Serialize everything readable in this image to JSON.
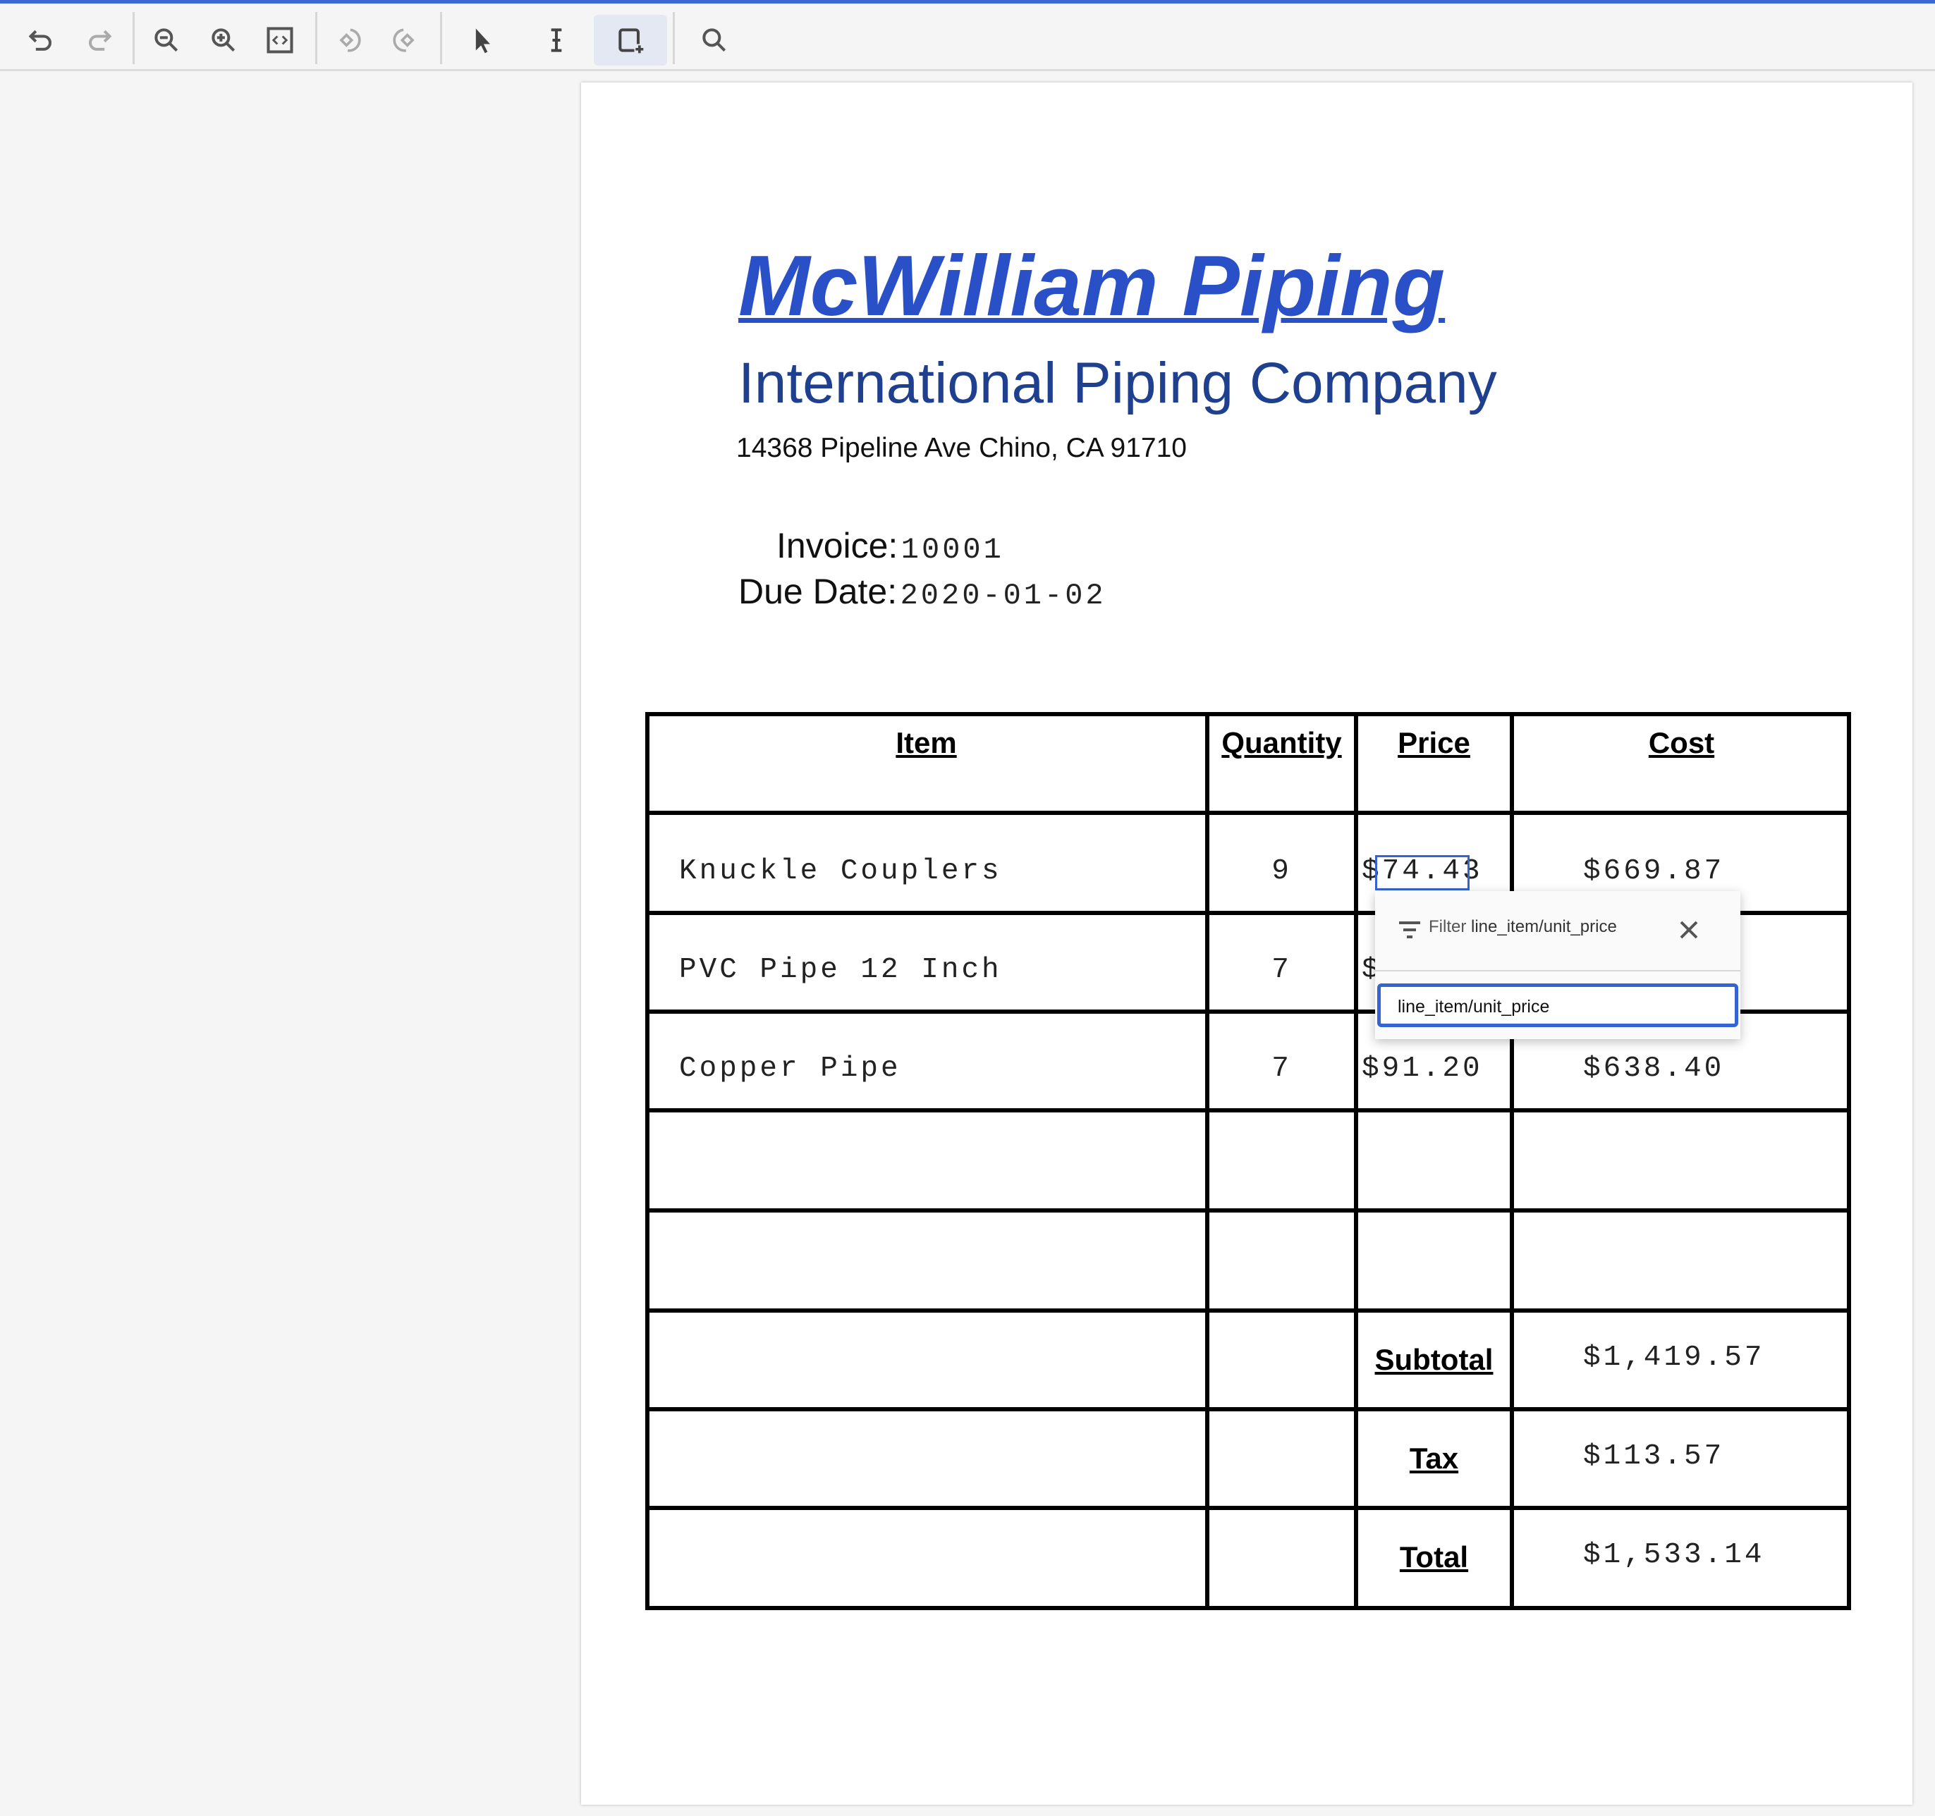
{
  "toolbar": {
    "buttons": [
      {
        "name": "undo-button",
        "icon": "undo-icon",
        "enabled": true
      },
      {
        "name": "redo-button",
        "icon": "redo-icon",
        "enabled": false
      },
      {
        "name": "zoom-out-button",
        "icon": "zoom-out-icon",
        "enabled": true
      },
      {
        "name": "zoom-in-button",
        "icon": "zoom-in-icon",
        "enabled": true
      },
      {
        "name": "fit-page-button",
        "icon": "fit-page-icon",
        "enabled": true
      },
      {
        "name": "rotate-left-button",
        "icon": "rotate-left-icon",
        "enabled": false
      },
      {
        "name": "rotate-right-button",
        "icon": "rotate-right-icon",
        "enabled": false
      },
      {
        "name": "select-tool-button",
        "icon": "pointer-icon",
        "enabled": true
      },
      {
        "name": "text-select-tool-button",
        "icon": "text-cursor-icon",
        "enabled": true
      },
      {
        "name": "draw-box-tool-button",
        "icon": "add-box-icon",
        "enabled": true,
        "selected": true
      },
      {
        "name": "search-button",
        "icon": "search-icon",
        "enabled": true
      }
    ]
  },
  "document": {
    "company": "McWilliam Piping",
    "subtitle": "International Piping Company",
    "address": "14368 Pipeline Ave Chino, CA 91710",
    "invoice_label": "Invoice:",
    "invoice_value": "10001",
    "due_label": "Due Date:",
    "due_value": "2020-01-02",
    "table": {
      "headers": [
        "Item",
        "Quantity",
        "Price",
        "Cost"
      ],
      "rows": [
        [
          "Knuckle Couplers",
          "9",
          "$74.43",
          "$669.87"
        ],
        [
          "PVC Pipe 12 Inch",
          "7",
          "$",
          ""
        ],
        [
          "Copper Pipe",
          "7",
          "$91.20",
          "$638.40"
        ]
      ],
      "summary": [
        {
          "label": "Subtotal",
          "value": "$1,419.57"
        },
        {
          "label": "Tax",
          "value": "$113.57"
        },
        {
          "label": "Total",
          "value": "$1,533.14"
        }
      ]
    }
  },
  "popup": {
    "title_prefix": "Filter",
    "title_field": "line_item/unit_price",
    "input_value": "line_item/unit_price"
  },
  "colors": {
    "accent": "#3563d3",
    "title": "#2a50c8",
    "subtitle": "#1f3f8f"
  }
}
